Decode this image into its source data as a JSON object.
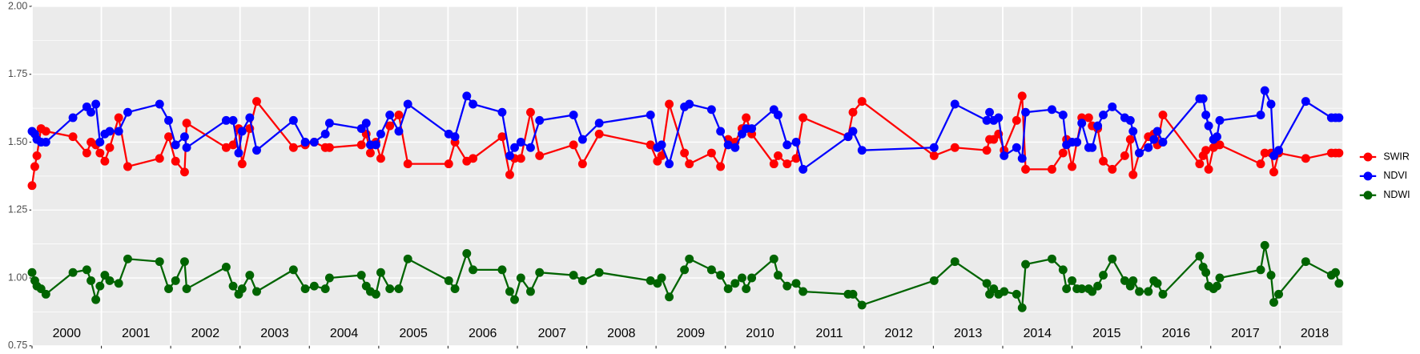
{
  "chart_data": {
    "type": "line",
    "x": [
      2000.0,
      2000.04,
      2000.07,
      2000.13,
      2000.2,
      2000.59,
      2000.79,
      2000.85,
      2000.92,
      2000.98,
      2001.05,
      2001.12,
      2001.25,
      2001.38,
      2001.84,
      2001.97,
      2002.07,
      2002.2,
      2002.23,
      2002.8,
      2002.9,
      2002.98,
      2003.03,
      2003.14,
      2003.24,
      2003.77,
      2003.94,
      2004.07,
      2004.23,
      2004.29,
      2004.75,
      2004.82,
      2004.88,
      2004.96,
      2005.03,
      2005.16,
      2005.29,
      2005.42,
      2006.01,
      2006.1,
      2006.27,
      2006.36,
      2006.78,
      2006.89,
      2006.96,
      2007.05,
      2007.19,
      2007.32,
      2007.81,
      2007.94,
      2008.18,
      2008.92,
      2009.02,
      2009.08,
      2009.19,
      2009.41,
      2009.48,
      2009.8,
      2009.93,
      2010.04,
      2010.14,
      2010.24,
      2010.3,
      2010.38,
      2010.7,
      2010.76,
      2010.89,
      2011.02,
      2011.12,
      2011.77,
      2011.84,
      2011.97,
      2013.01,
      2013.31,
      2013.77,
      2013.81,
      2013.87,
      2013.94,
      2014.02,
      2014.2,
      2014.28,
      2014.33,
      2014.71,
      2014.87,
      2014.92,
      2015.0,
      2015.07,
      2015.14,
      2015.24,
      2015.29,
      2015.37,
      2015.45,
      2015.58,
      2015.76,
      2015.84,
      2015.88,
      2015.97,
      2016.1,
      2016.18,
      2016.23,
      2016.31,
      2016.84,
      2016.89,
      2016.93,
      2016.97,
      2017.04,
      2017.09,
      2017.13,
      2017.72,
      2017.78,
      2017.87,
      2017.91,
      2017.98,
      2018.37,
      2018.74,
      2018.8,
      2018.85
    ],
    "series": [
      {
        "name": "SWIR",
        "color": "#ff0000",
        "values": [
          1.34,
          1.41,
          1.45,
          1.55,
          1.54,
          1.52,
          1.46,
          1.5,
          1.49,
          1.46,
          1.43,
          1.48,
          1.59,
          1.41,
          1.44,
          1.52,
          1.43,
          1.39,
          1.57,
          1.48,
          1.49,
          1.55,
          1.42,
          1.55,
          1.65,
          1.48,
          1.49,
          1.5,
          1.48,
          1.48,
          1.49,
          1.53,
          1.46,
          1.5,
          1.44,
          1.56,
          1.6,
          1.42,
          1.42,
          1.5,
          1.43,
          1.44,
          1.52,
          1.38,
          1.44,
          1.44,
          1.61,
          1.45,
          1.49,
          1.42,
          1.53,
          1.49,
          1.43,
          1.45,
          1.64,
          1.46,
          1.42,
          1.46,
          1.41,
          1.51,
          1.5,
          1.55,
          1.59,
          1.53,
          1.42,
          1.45,
          1.42,
          1.44,
          1.59,
          1.52,
          1.61,
          1.65,
          1.45,
          1.48,
          1.47,
          1.51,
          1.51,
          1.53,
          1.47,
          1.58,
          1.67,
          1.4,
          1.4,
          1.46,
          1.51,
          1.41,
          1.5,
          1.59,
          1.59,
          1.56,
          1.55,
          1.43,
          1.4,
          1.45,
          1.51,
          1.38,
          1.46,
          1.52,
          1.53,
          1.49,
          1.6,
          1.42,
          1.45,
          1.47,
          1.4,
          1.48,
          1.49,
          1.49,
          1.42,
          1.46,
          1.46,
          1.39,
          1.46,
          1.44,
          1.46,
          1.46,
          1.46
        ]
      },
      {
        "name": "NDVI",
        "color": "#0000ff",
        "values": [
          1.54,
          1.53,
          1.51,
          1.5,
          1.5,
          1.59,
          1.63,
          1.61,
          1.64,
          1.5,
          1.53,
          1.54,
          1.54,
          1.61,
          1.64,
          1.58,
          1.49,
          1.52,
          1.48,
          1.58,
          1.58,
          1.46,
          1.54,
          1.59,
          1.47,
          1.58,
          1.5,
          1.5,
          1.53,
          1.57,
          1.55,
          1.57,
          1.49,
          1.49,
          1.53,
          1.6,
          1.54,
          1.64,
          1.53,
          1.52,
          1.67,
          1.64,
          1.61,
          1.45,
          1.48,
          1.5,
          1.48,
          1.58,
          1.6,
          1.51,
          1.57,
          1.6,
          1.48,
          1.49,
          1.42,
          1.63,
          1.64,
          1.62,
          1.54,
          1.49,
          1.48,
          1.53,
          1.55,
          1.55,
          1.62,
          1.6,
          1.49,
          1.5,
          1.4,
          1.52,
          1.54,
          1.47,
          1.48,
          1.64,
          1.58,
          1.61,
          1.58,
          1.59,
          1.45,
          1.48,
          1.44,
          1.61,
          1.62,
          1.6,
          1.49,
          1.5,
          1.5,
          1.57,
          1.48,
          1.48,
          1.56,
          1.6,
          1.63,
          1.59,
          1.58,
          1.54,
          1.46,
          1.48,
          1.51,
          1.54,
          1.5,
          1.66,
          1.66,
          1.6,
          1.56,
          1.51,
          1.52,
          1.58,
          1.6,
          1.69,
          1.64,
          1.45,
          1.47,
          1.65,
          1.59,
          1.59,
          1.59
        ]
      },
      {
        "name": "NDWI",
        "color": "#006400",
        "values": [
          1.02,
          0.99,
          0.97,
          0.96,
          0.94,
          1.02,
          1.03,
          0.99,
          0.92,
          0.97,
          1.01,
          0.99,
          0.98,
          1.07,
          1.06,
          0.96,
          0.99,
          1.06,
          0.96,
          1.04,
          0.97,
          0.94,
          0.96,
          1.01,
          0.95,
          1.03,
          0.96,
          0.97,
          0.96,
          1.0,
          1.01,
          0.97,
          0.95,
          0.94,
          1.02,
          0.96,
          0.96,
          1.07,
          0.99,
          0.96,
          1.09,
          1.03,
          1.03,
          0.95,
          0.92,
          1.0,
          0.95,
          1.02,
          1.01,
          0.99,
          1.02,
          0.99,
          0.98,
          1.0,
          0.93,
          1.03,
          1.07,
          1.03,
          1.01,
          0.96,
          0.98,
          1.0,
          0.96,
          1.0,
          1.07,
          1.01,
          0.97,
          0.98,
          0.95,
          0.94,
          0.94,
          0.9,
          0.99,
          1.06,
          0.98,
          0.94,
          0.96,
          0.94,
          0.95,
          0.94,
          0.89,
          1.05,
          1.07,
          1.03,
          0.96,
          0.99,
          0.96,
          0.96,
          0.96,
          0.95,
          0.97,
          1.01,
          1.07,
          0.99,
          0.97,
          0.99,
          0.95,
          0.95,
          0.99,
          0.98,
          0.94,
          1.08,
          1.04,
          1.02,
          0.97,
          0.96,
          0.97,
          1.0,
          1.03,
          1.12,
          1.01,
          0.91,
          0.94,
          1.06,
          1.01,
          1.02,
          0.98
        ]
      }
    ],
    "xlim": [
      2000,
      2018.9
    ],
    "xticks": [
      2000,
      2001,
      2002,
      2003,
      2004,
      2005,
      2006,
      2007,
      2008,
      2009,
      2010,
      2011,
      2012,
      2013,
      2014,
      2015,
      2016,
      2017,
      2018
    ],
    "ylim": [
      0.75,
      2.0
    ],
    "yticks": [
      0.75,
      {
        "value": 1,
        "label": "1.00"
      },
      1.25,
      {
        "value": 1.5,
        "label": "1.50"
      },
      1.75,
      {
        "value": 2,
        "label": "2.00"
      }
    ],
    "grid": true,
    "legend": "right"
  }
}
